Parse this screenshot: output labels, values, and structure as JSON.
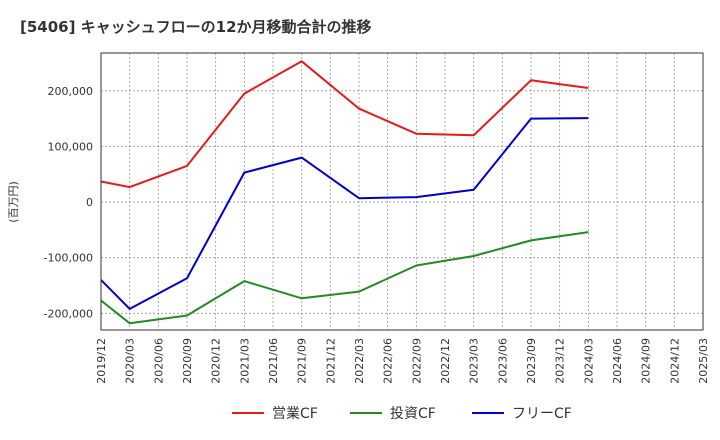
{
  "chart_data": {
    "type": "line",
    "title": "[5406]  キャッシュフローの12か月移動合計の推移",
    "ylabel": "(百万円)",
    "xlabel": "",
    "ylim": [
      -230000,
      268000
    ],
    "yticks": [
      -200000,
      -100000,
      0,
      100000,
      200000
    ],
    "ytick_labels": [
      "-200,000",
      "-100,000",
      "0",
      "100,000",
      "200,000"
    ],
    "categories": [
      "2019/12",
      "2020/03",
      "2020/06",
      "2020/09",
      "2020/12",
      "2021/03",
      "2021/06",
      "2021/09",
      "2021/12",
      "2022/03",
      "2022/06",
      "2022/09",
      "2022/12",
      "2023/03",
      "2023/06",
      "2023/09",
      "2023/12",
      "2024/03",
      "2024/06",
      "2024/09",
      "2024/12",
      "2025/03"
    ],
    "grid": true,
    "legend_position": "bottom",
    "series": [
      {
        "name": "営業CF",
        "color": "#e41a1c",
        "values": [
          37000,
          27000,
          null,
          65000,
          null,
          195000,
          null,
          253000,
          null,
          168000,
          null,
          123000,
          null,
          120000,
          null,
          219000,
          null,
          205000,
          null,
          null,
          null,
          null
        ]
      },
      {
        "name": "投資CF",
        "color": "#228b22",
        "values": [
          -177000,
          -218000,
          null,
          -204000,
          null,
          -142000,
          null,
          -173000,
          null,
          -161000,
          null,
          -114000,
          null,
          -97000,
          null,
          -69000,
          null,
          -54000,
          null,
          null,
          null,
          null
        ]
      },
      {
        "name": "フリーCF",
        "color": "#0000cd",
        "values": [
          -140000,
          -192000,
          null,
          -137000,
          null,
          53000,
          null,
          80000,
          null,
          7000,
          null,
          9000,
          null,
          22000,
          null,
          150000,
          null,
          151000,
          null,
          null,
          null,
          null
        ]
      }
    ]
  }
}
